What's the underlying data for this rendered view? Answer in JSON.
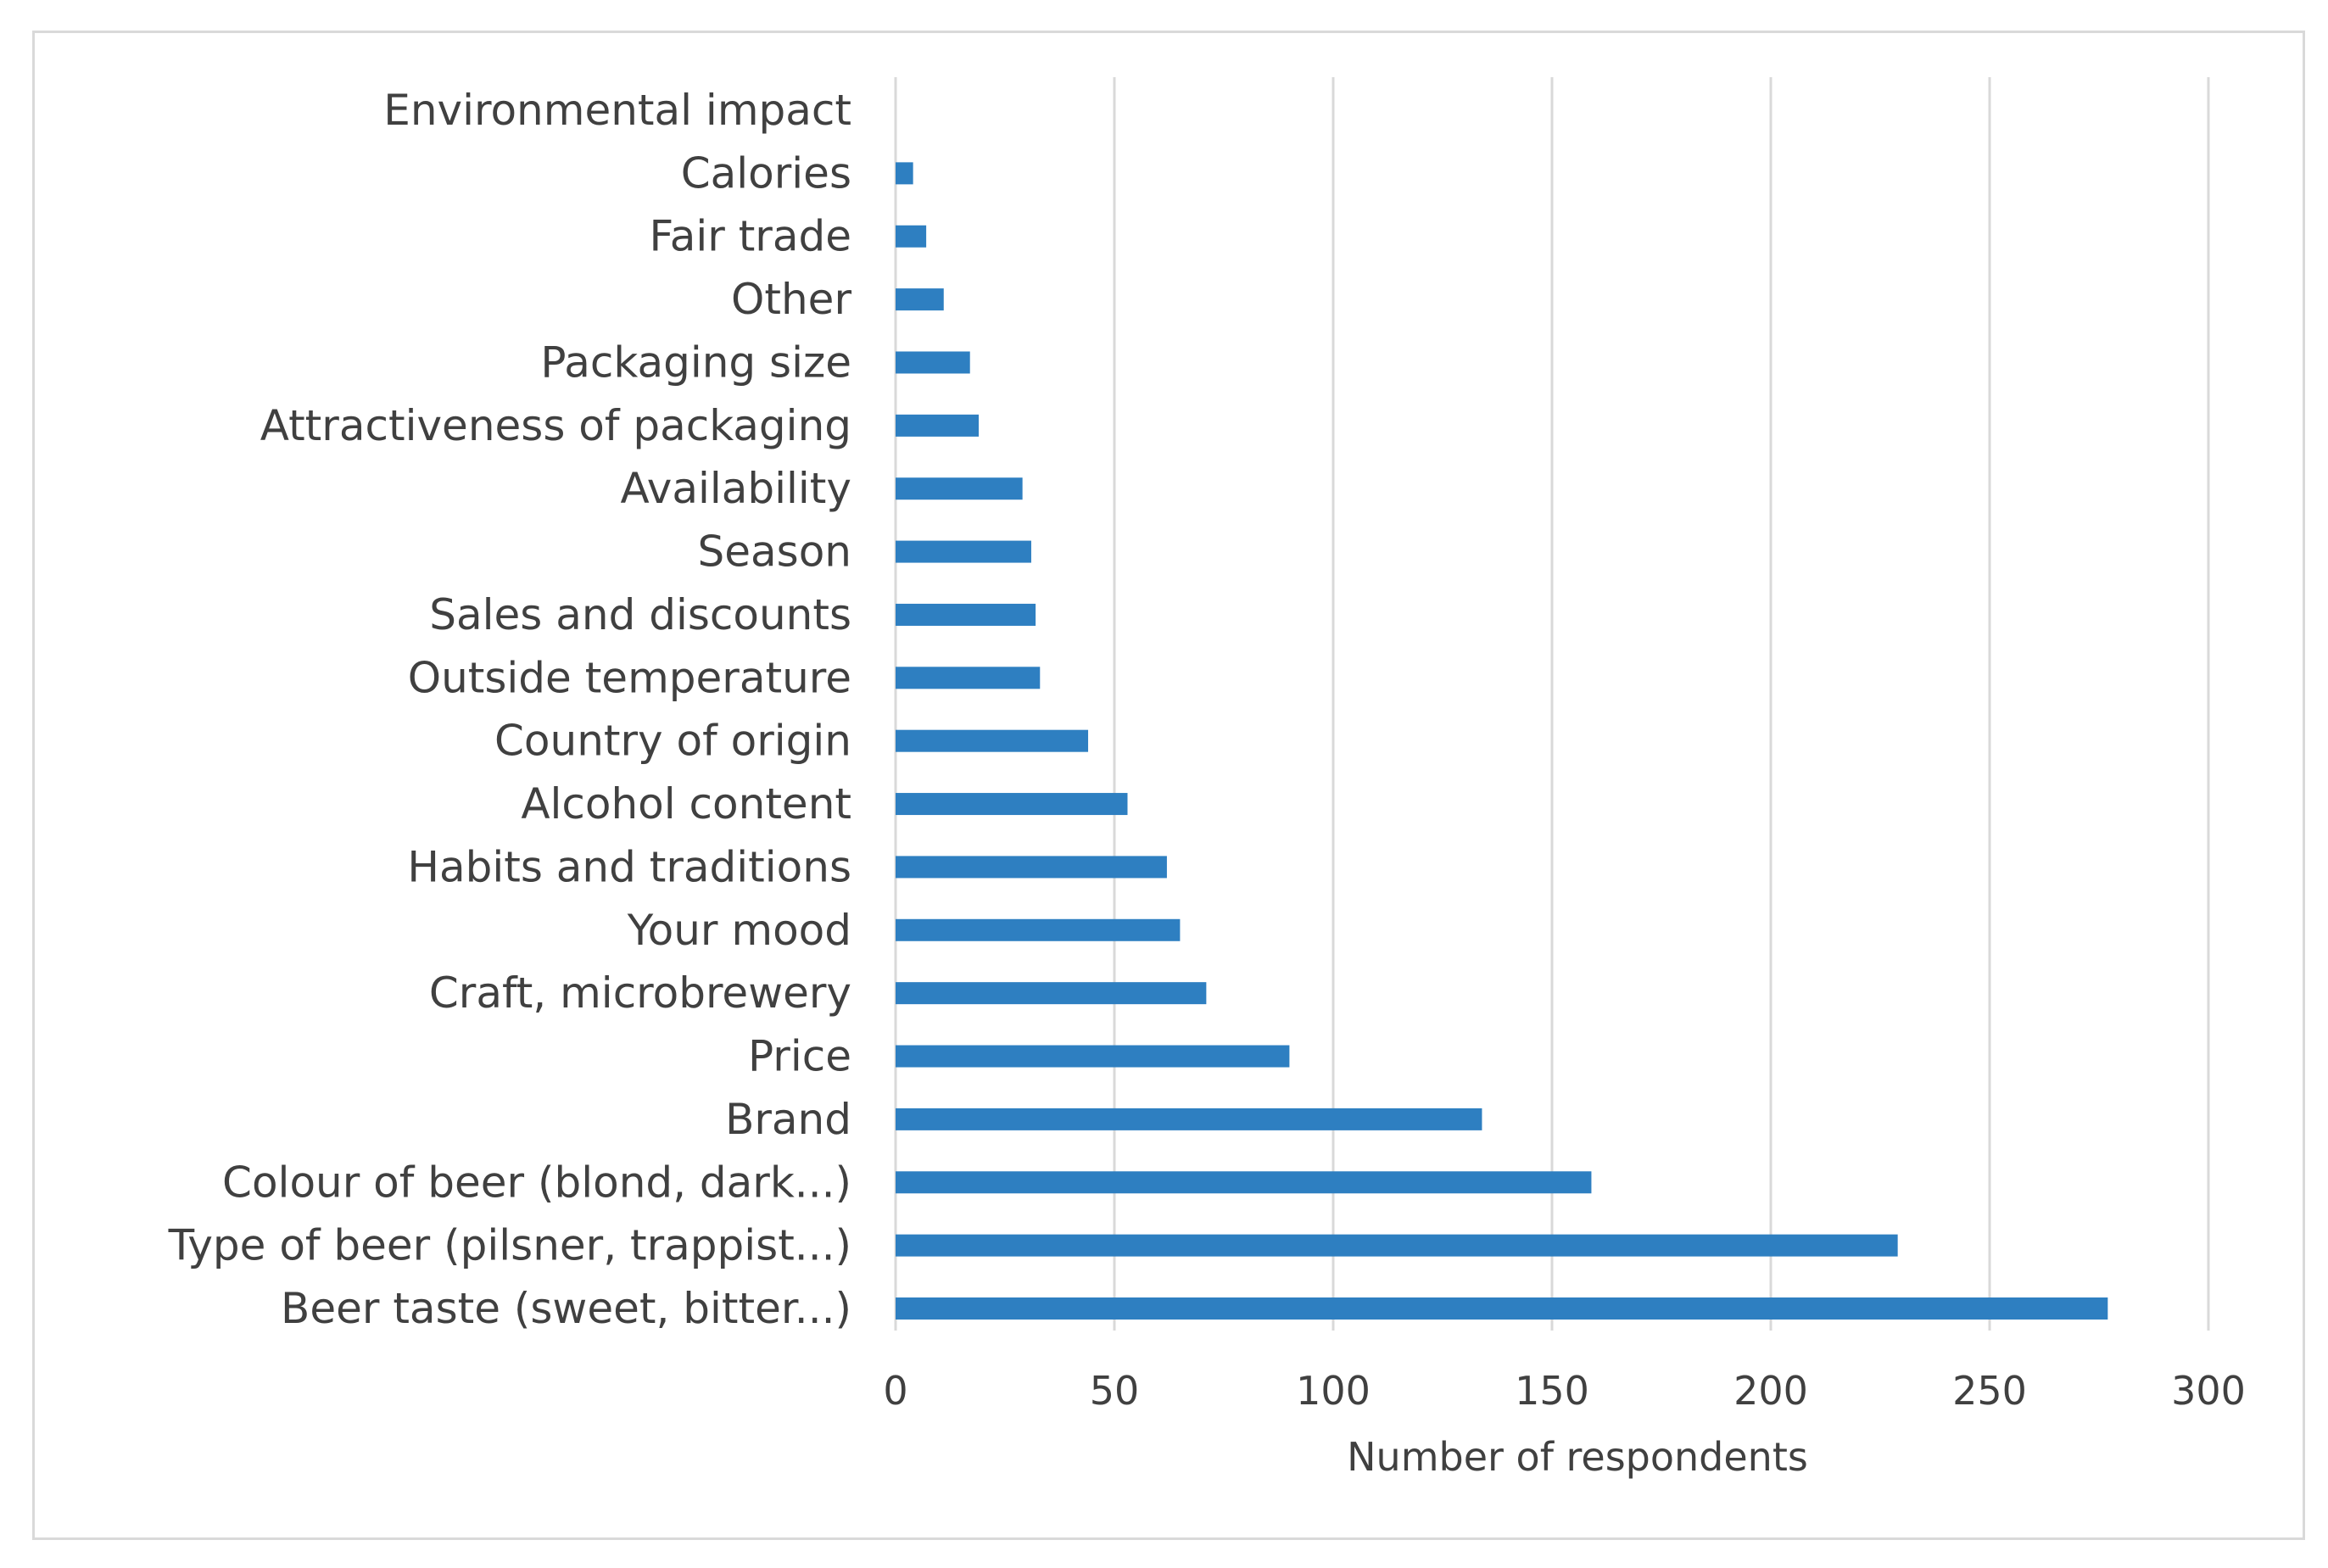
{
  "chart_data": {
    "type": "bar",
    "orientation": "horizontal",
    "title": "",
    "xlabel": "Number of respondents",
    "ylabel": "",
    "xlim": [
      0,
      300
    ],
    "xticks": [
      0,
      50,
      100,
      150,
      200,
      250,
      300
    ],
    "grid": true,
    "legend": "none",
    "bar_color": "#2e7fc1",
    "categories": [
      "Environmental impact",
      "Calories",
      "Fair trade",
      "Other",
      "Packaging size",
      "Attractiveness of packaging",
      "Availability",
      "Season",
      "Sales and discounts",
      "Outside temperature",
      "Country of origin",
      "Alcohol content",
      "Habits and traditions",
      "Your mood",
      "Craft, microbrewery",
      "Price",
      "Brand",
      "Colour of beer (blond, dark...)",
      "Type of beer (pilsner, trappist...)",
      "Beer taste (sweet, bitter...)"
    ],
    "values": [
      0,
      4,
      7,
      11,
      17,
      19,
      29,
      31,
      32,
      33,
      44,
      53,
      62,
      65,
      71,
      90,
      134,
      159,
      229,
      277
    ]
  }
}
